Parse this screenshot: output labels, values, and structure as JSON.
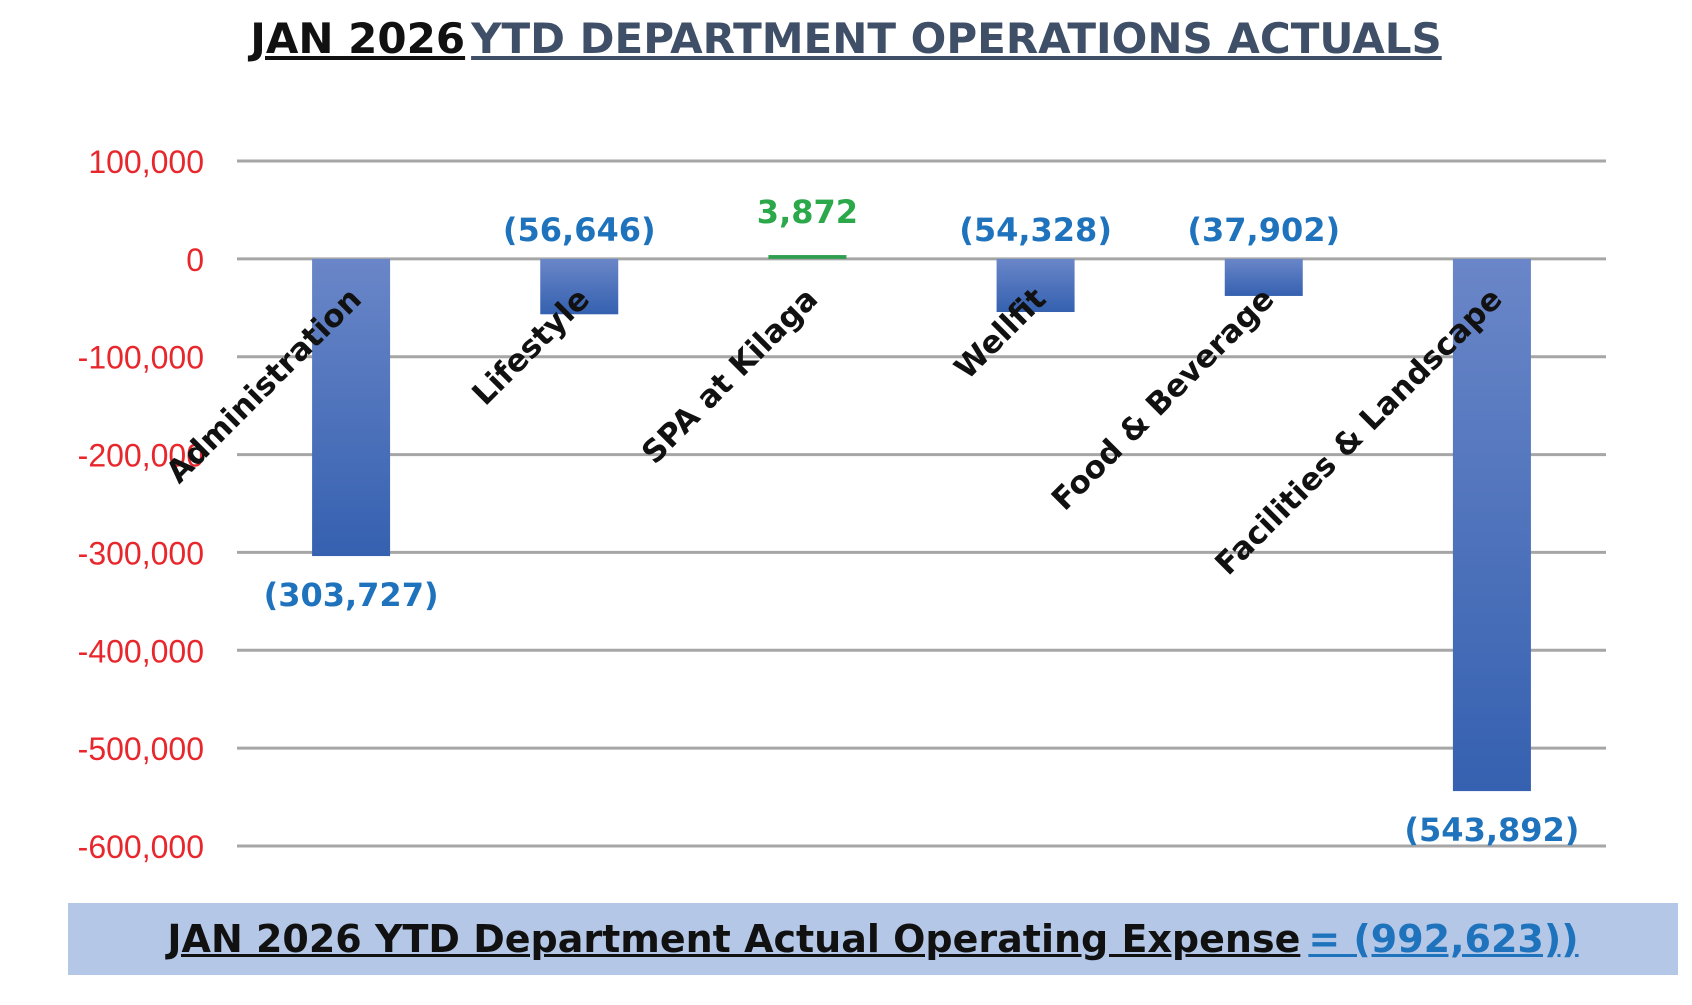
{
  "chart_data": {
    "type": "bar",
    "title_part1": "JAN 2026",
    "title_part2": "YTD  DEPARTMENT OPERATIONS ACTUALS",
    "categories": [
      "Administration",
      "Lifestyle",
      "SPA at Kilaga",
      "Wellfit",
      "Food & Beverage",
      "Facilities & Landscape"
    ],
    "values": [
      -303727,
      -56646,
      3872,
      -54328,
      -37902,
      -543892
    ],
    "data_labels": [
      "(303,727)",
      "(56,646)",
      "3,872",
      "(54,328)",
      "(37,902)",
      "(543,892)"
    ],
    "ylim": [
      -600000,
      100000
    ],
    "yticks": [
      100000,
      0,
      -100000,
      -200000,
      -300000,
      -400000,
      -500000,
      -600000
    ],
    "ytick_labels": [
      "100,000",
      "0",
      "-100,000",
      "-200,000",
      "-300,000",
      "-400,000",
      "-500,000",
      "-600,000"
    ],
    "grid": true,
    "xlabel": "",
    "ylabel": "",
    "colors": {
      "bar_top": "#6a86c8",
      "bar_bottom": "#3561b0",
      "positive_bar": "#2e9e4f",
      "label_negative": "#1f73bd",
      "label_positive": "#2aa84a",
      "axis_tick": "#e8272d",
      "grid": "#a6a6a6",
      "category_text": "#111111"
    }
  },
  "footer": {
    "text": "JAN 2026 YTD Department Actual Operating Expense",
    "value": "= (992,623))"
  }
}
